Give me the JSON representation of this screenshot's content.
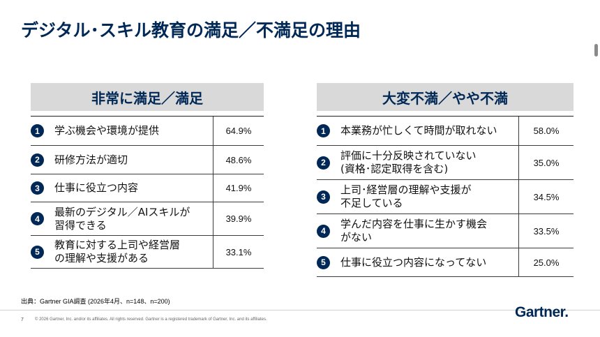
{
  "title": "デジタル･スキル教育の満足／不満足の理由",
  "left_panel": {
    "header": "非常に満足／満足",
    "rows": [
      {
        "num": "1",
        "label": "学ぶ機会や環境が提供",
        "value": "64.9%"
      },
      {
        "num": "2",
        "label": "研修方法が適切",
        "value": "48.6%"
      },
      {
        "num": "3",
        "label": "仕事に役立つ内容",
        "value": "41.9%"
      },
      {
        "num": "4",
        "label": "最新のデジタル／AIスキルが\n習得できる",
        "value": "39.9%"
      },
      {
        "num": "5",
        "label": "教育に対する上司や経営層\nの理解や支援がある",
        "value": "33.1%"
      }
    ]
  },
  "right_panel": {
    "header": "大変不満／やや不満",
    "rows": [
      {
        "num": "1",
        "label": "本業務が忙しくて時間が取れない",
        "value": "58.0%"
      },
      {
        "num": "2",
        "label": "評価に十分反映されていない\n(資格･認定取得を含む)",
        "value": "35.0%"
      },
      {
        "num": "3",
        "label": "上司･経営層の理解や支援が\n不足している",
        "value": "34.5%"
      },
      {
        "num": "4",
        "label": "学んだ内容を仕事に生かす機会\nがない",
        "value": "33.5%"
      },
      {
        "num": "5",
        "label": "仕事に役立つ内容になってない",
        "value": "25.0%"
      }
    ]
  },
  "source": "出典：Gartner GIA調査 (2026年4月、n=148、n=200)",
  "page_number": "7",
  "copyright": "© 2026 Gartner, Inc. and/or its affiliates. All rights reserved. Gartner is a registered trademark of Gartner, Inc. and its affiliates.",
  "logo": "Gartner",
  "colors": {
    "brand": "#002856",
    "header_bg": "#d9d9d9"
  }
}
